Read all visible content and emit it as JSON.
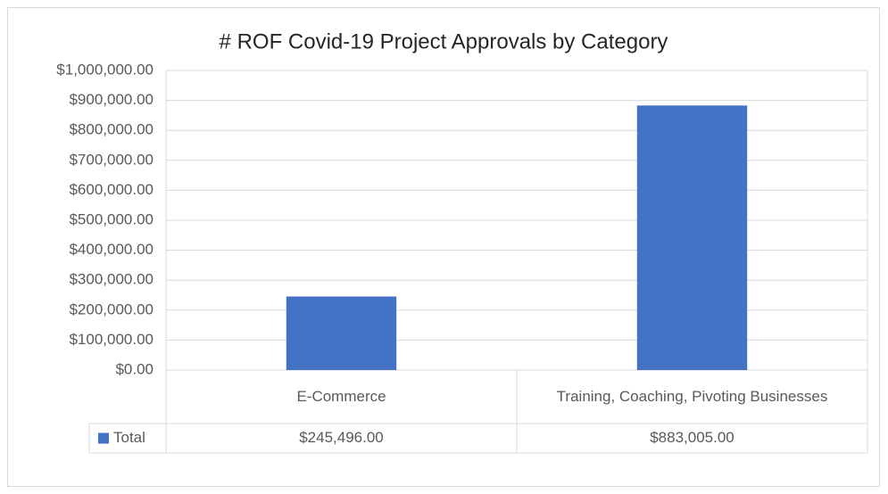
{
  "chart_data": {
    "type": "bar",
    "title": "# ROF Covid-19 Project Approvals by Category",
    "categories": [
      "E-Commerce",
      "Training, Coaching, Pivoting Businesses"
    ],
    "series": [
      {
        "name": "Total",
        "color": "#4472c4",
        "values": [
          245496,
          883005
        ],
        "value_labels": [
          "$245,496.00",
          "$883,005.00"
        ]
      }
    ],
    "ylim": [
      0,
      1000000
    ],
    "yticks": [
      {
        "value": 0,
        "label": "$0.00"
      },
      {
        "value": 100000,
        "label": "$100,000.00"
      },
      {
        "value": 200000,
        "label": "$200,000.00"
      },
      {
        "value": 300000,
        "label": "$300,000.00"
      },
      {
        "value": 400000,
        "label": "$400,000.00"
      },
      {
        "value": 500000,
        "label": "$500,000.00"
      },
      {
        "value": 600000,
        "label": "$600,000.00"
      },
      {
        "value": 700000,
        "label": "$700,000.00"
      },
      {
        "value": 800000,
        "label": "$800,000.00"
      },
      {
        "value": 900000,
        "label": "$900,000.00"
      },
      {
        "value": 1000000,
        "label": "$1,000,000.00"
      }
    ],
    "grid": true
  }
}
